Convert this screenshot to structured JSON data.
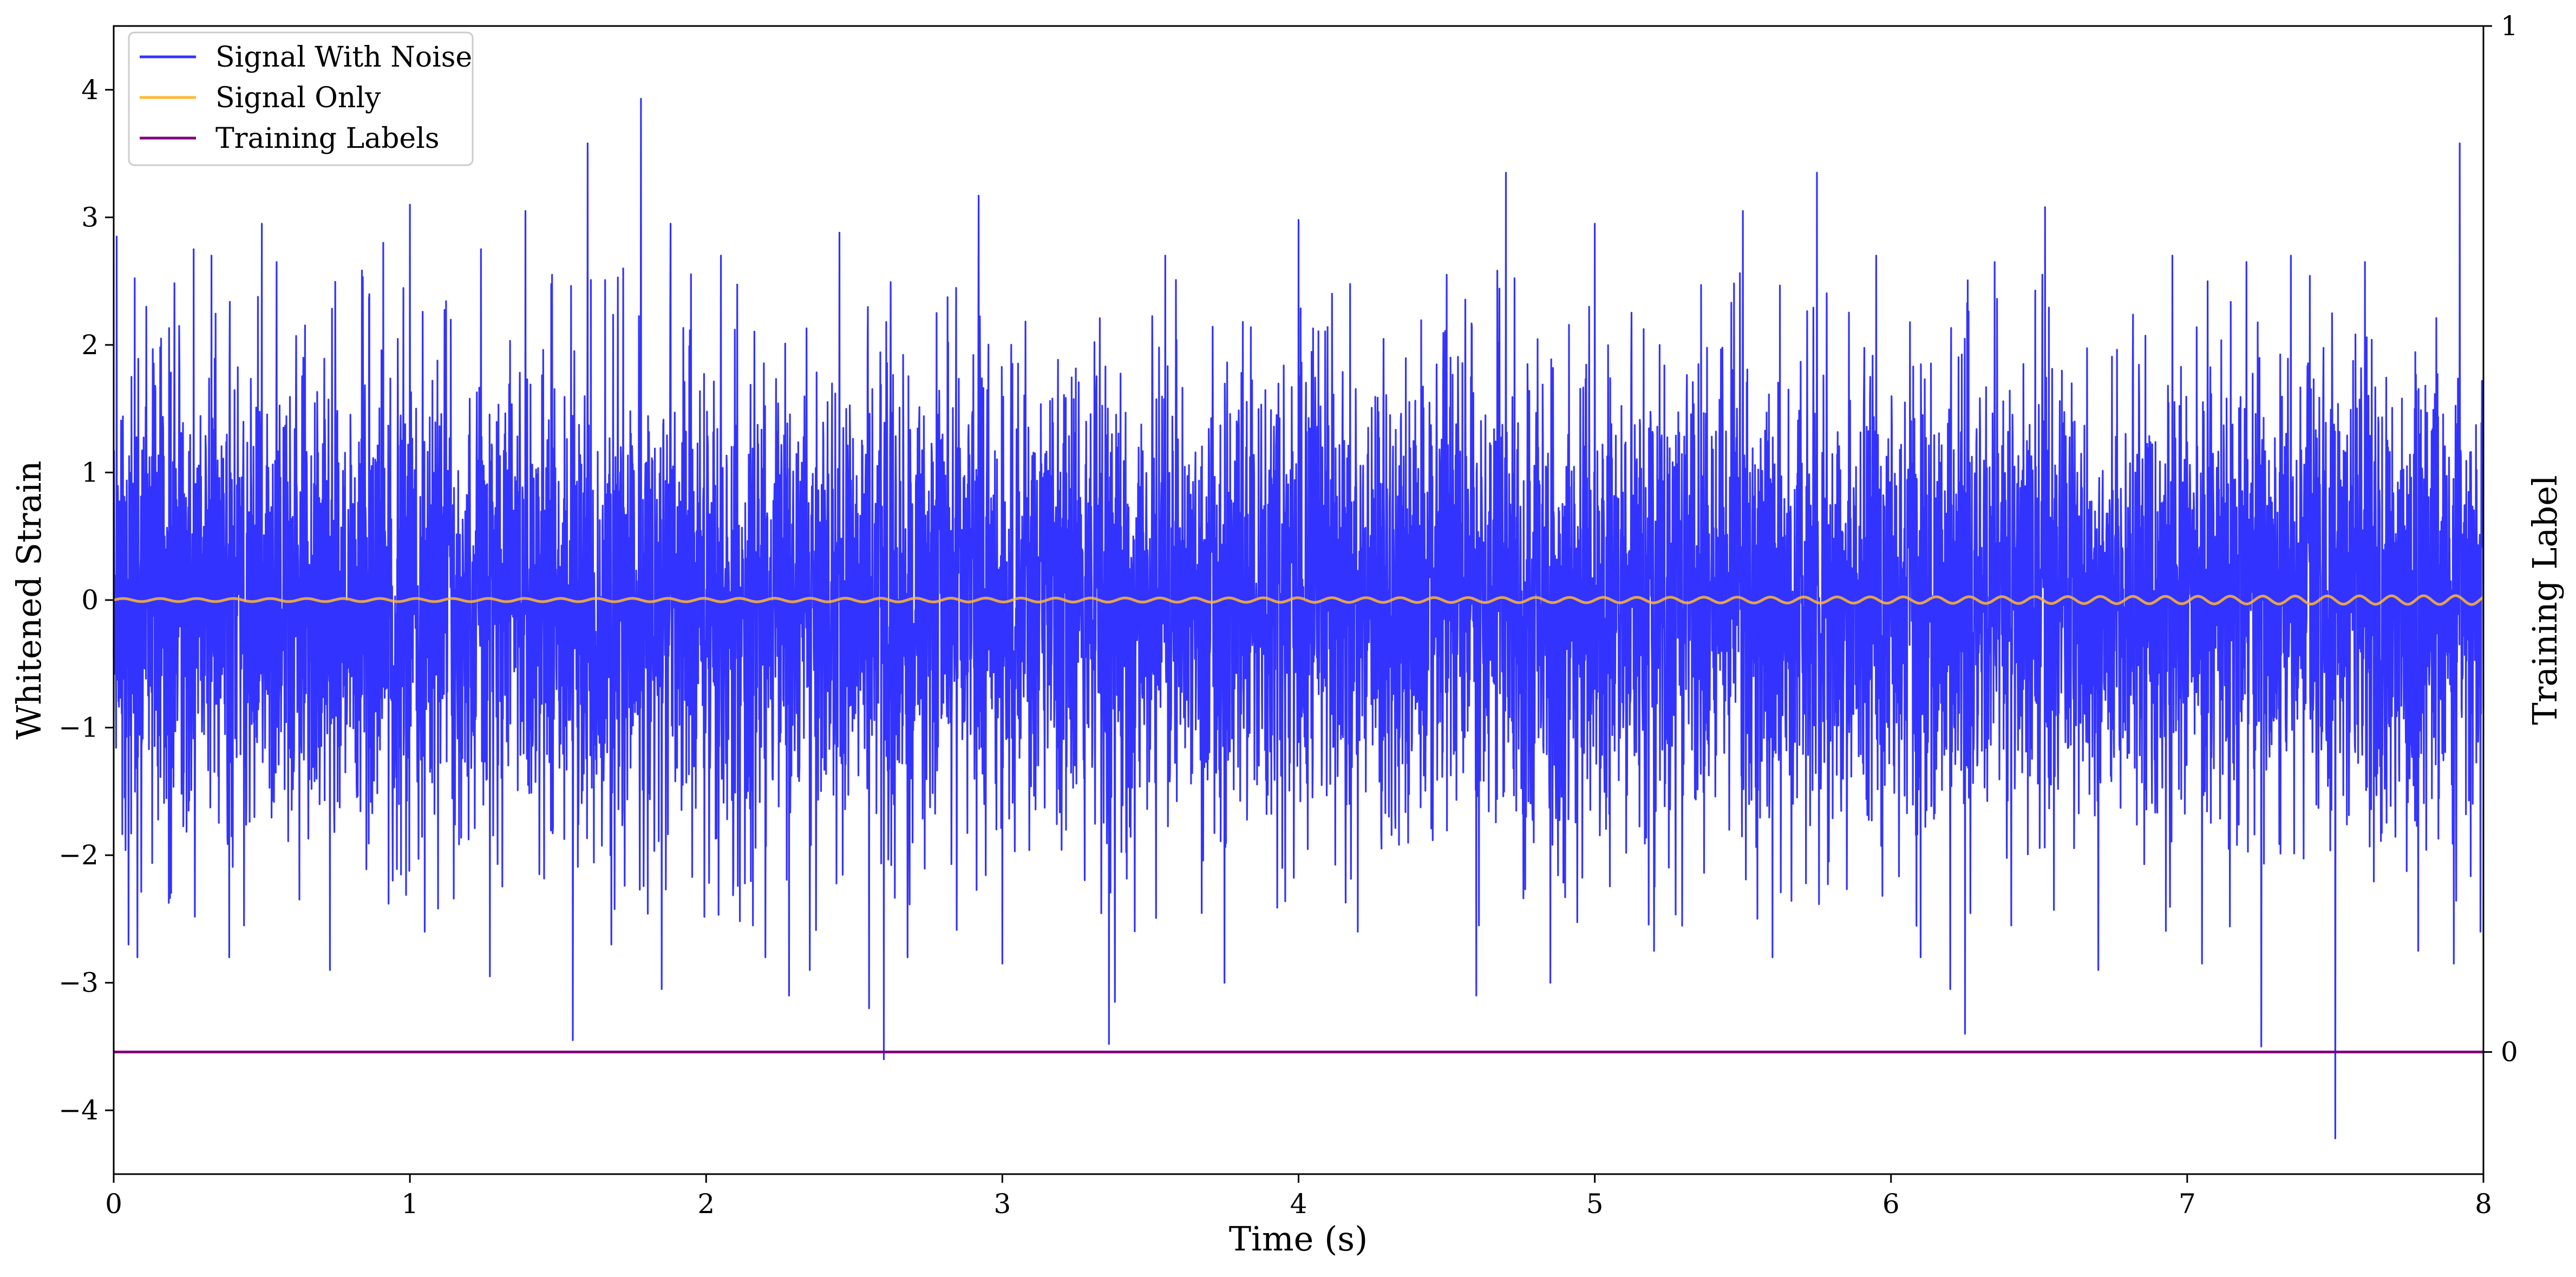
{
  "chart_data": {
    "type": "line",
    "title": "",
    "xlabel": "Time (s)",
    "ylabel": "Whitened Strain",
    "ylabel_right": "Training Label",
    "xlim": [
      0,
      8
    ],
    "ylim": [
      -4.5,
      4.5
    ],
    "ylim_right": [
      -0.119,
      1.0
    ],
    "grid": false,
    "legend_position": "top-left",
    "x_ticks": [
      {
        "value": 0,
        "label": "0"
      },
      {
        "value": 1,
        "label": "1"
      },
      {
        "value": 2,
        "label": "2"
      },
      {
        "value": 3,
        "label": "3"
      },
      {
        "value": 4,
        "label": "4"
      },
      {
        "value": 5,
        "label": "5"
      },
      {
        "value": 6,
        "label": "6"
      },
      {
        "value": 7,
        "label": "7"
      },
      {
        "value": 8,
        "label": "8"
      }
    ],
    "y_ticks": [
      {
        "value": 4,
        "label": "4"
      },
      {
        "value": 3,
        "label": "3"
      },
      {
        "value": 2,
        "label": "2"
      },
      {
        "value": 1,
        "label": "1"
      },
      {
        "value": 0,
        "label": "0"
      },
      {
        "value": -1,
        "label": "−1"
      },
      {
        "value": -2,
        "label": "−2"
      },
      {
        "value": -3,
        "label": "−3"
      },
      {
        "value": -4,
        "label": "−4"
      }
    ],
    "y_ticks_right": [
      {
        "value": 1,
        "label": "1"
      },
      {
        "value": 0,
        "label": "0"
      }
    ],
    "series": [
      {
        "name": "Signal With Noise",
        "color": "#3333ff",
        "description_kind": "noise",
        "std": 0.92,
        "peaks": [
          [
            0.01,
            2.85
          ],
          [
            0.05,
            -2.7
          ],
          [
            0.06,
            1.75
          ],
          [
            0.08,
            -2.8
          ],
          [
            0.11,
            2.3
          ],
          [
            0.16,
            2.05
          ],
          [
            0.27,
            2.75
          ],
          [
            0.33,
            2.7
          ],
          [
            0.39,
            -2.8
          ],
          [
            0.44,
            -2.55
          ],
          [
            0.5,
            2.95
          ],
          [
            0.55,
            2.65
          ],
          [
            0.73,
            -2.9
          ],
          [
            0.91,
            2.8
          ],
          [
            1.0,
            3.1
          ],
          [
            1.05,
            -2.6
          ],
          [
            1.24,
            2.75
          ],
          [
            1.27,
            -2.95
          ],
          [
            1.39,
            3.05
          ],
          [
            1.48,
            2.55
          ],
          [
            1.55,
            -3.45
          ],
          [
            1.6,
            3.58
          ],
          [
            1.68,
            -2.7
          ],
          [
            1.72,
            2.6
          ],
          [
            1.78,
            3.93
          ],
          [
            1.85,
            -3.05
          ],
          [
            1.88,
            2.95
          ],
          [
            2.05,
            2.7
          ],
          [
            2.2,
            -2.8
          ],
          [
            2.28,
            -3.1
          ],
          [
            2.35,
            -2.9
          ],
          [
            2.45,
            2.88
          ],
          [
            2.55,
            -3.2
          ],
          [
            2.6,
            -3.6
          ],
          [
            2.68,
            -2.8
          ],
          [
            2.92,
            3.17
          ],
          [
            3.0,
            -2.85
          ],
          [
            3.36,
            -3.48
          ],
          [
            3.38,
            -3.15
          ],
          [
            3.55,
            2.7
          ],
          [
            3.75,
            -3.0
          ],
          [
            4.0,
            2.98
          ],
          [
            4.2,
            -2.6
          ],
          [
            4.5,
            2.55
          ],
          [
            4.6,
            -3.1
          ],
          [
            4.7,
            3.35
          ],
          [
            4.85,
            -3.0
          ],
          [
            5.0,
            2.95
          ],
          [
            5.2,
            -2.75
          ],
          [
            5.5,
            3.05
          ],
          [
            5.6,
            -2.8
          ],
          [
            5.75,
            3.35
          ],
          [
            5.95,
            2.7
          ],
          [
            6.1,
            -2.8
          ],
          [
            6.2,
            -3.05
          ],
          [
            6.25,
            -3.4
          ],
          [
            6.35,
            2.65
          ],
          [
            6.52,
            3.08
          ],
          [
            6.7,
            -2.9
          ],
          [
            6.95,
            2.7
          ],
          [
            7.05,
            -2.85
          ],
          [
            7.2,
            2.65
          ],
          [
            7.25,
            -3.5
          ],
          [
            7.35,
            2.7
          ],
          [
            7.5,
            -4.22
          ],
          [
            7.6,
            2.65
          ],
          [
            7.78,
            -2.75
          ],
          [
            7.9,
            -2.85
          ],
          [
            7.92,
            3.58
          ],
          [
            7.99,
            -2.6
          ]
        ]
      },
      {
        "name": "Signal Only",
        "color": "#ffb732",
        "description_kind": "sine",
        "amplitude_start": 0.012,
        "amplitude_end": 0.035,
        "cycles": 64
      },
      {
        "name": "Training Labels",
        "color": "#800080",
        "axis": "right",
        "x": [
          0,
          8
        ],
        "values": [
          0,
          0
        ]
      }
    ]
  }
}
